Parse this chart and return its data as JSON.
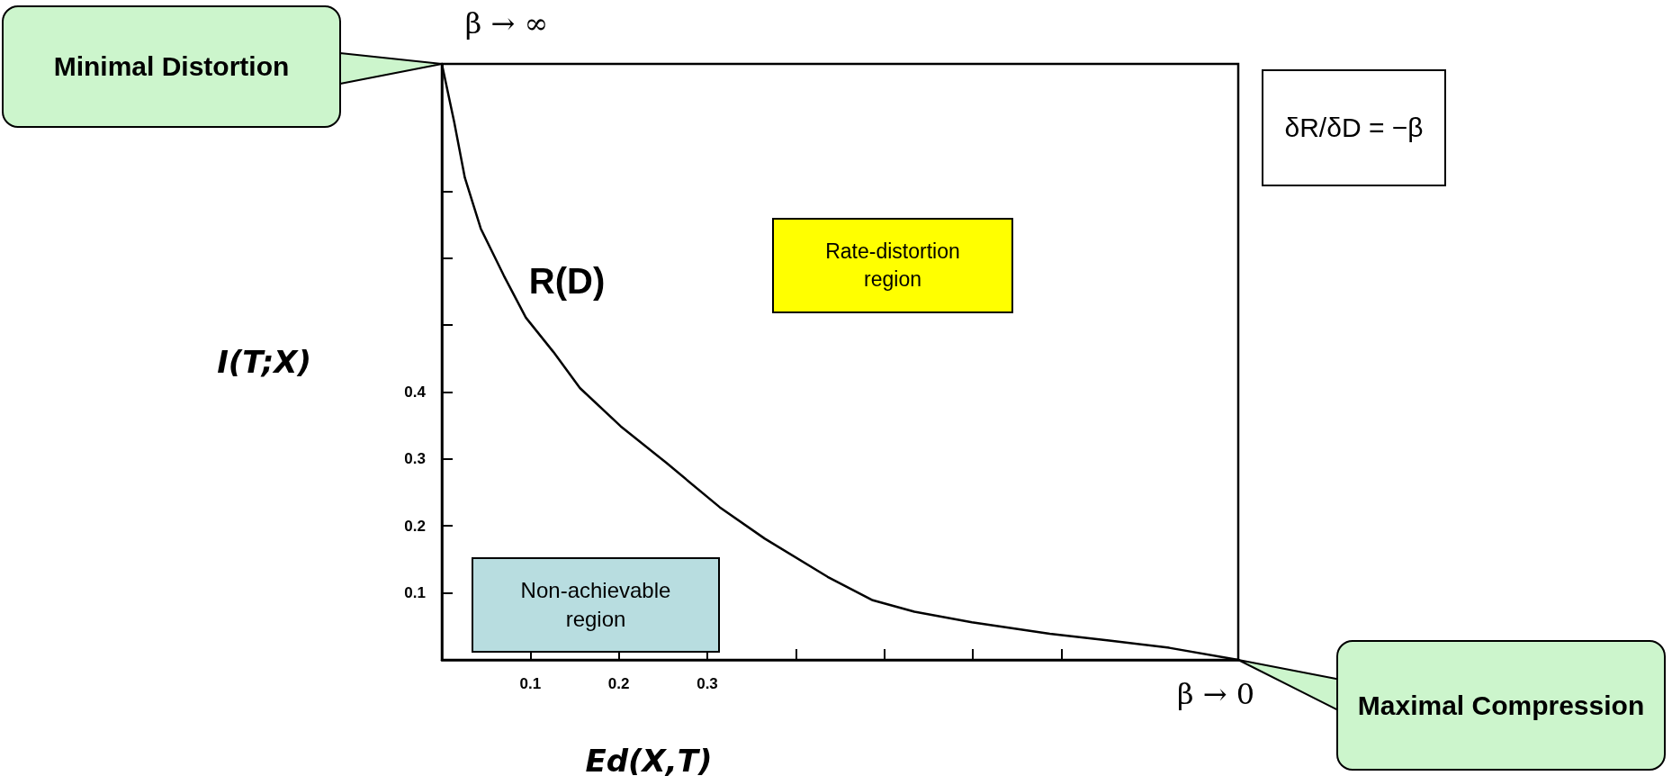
{
  "chart_data": {
    "type": "line",
    "xlabel": "Ed(X,T)",
    "ylabel": "I(T;X)",
    "x": [
      0,
      0.014,
      0.026,
      0.044,
      0.07,
      0.095,
      0.126,
      0.156,
      0.202,
      0.253,
      0.314,
      0.365,
      0.436,
      0.487,
      0.534,
      0.599,
      0.687,
      0.754,
      0.822,
      0.9
    ],
    "series": [
      {
        "color": "#000000",
        "values": [
          0.89,
          0.803,
          0.72,
          0.644,
          0.574,
          0.511,
          0.46,
          0.406,
          0.349,
          0.295,
          0.228,
          0.181,
          0.124,
          0.089,
          0.072,
          0.056,
          0.039,
          0.029,
          0.018,
          0
        ]
      }
    ],
    "xlim": [
      0,
      0.9
    ],
    "ylim": [
      0,
      0.89
    ],
    "xticks": [
      0.1,
      0.2,
      0.3,
      {
        "value": 0.4,
        "label": null
      },
      {
        "value": 0.5,
        "label": null
      },
      {
        "value": 0.6,
        "label": null
      },
      {
        "value": 0.7,
        "label": null
      }
    ],
    "yticks": [
      0.1,
      0.2,
      0.3,
      0.4,
      {
        "value": 0.5,
        "label": null
      },
      {
        "value": 0.6,
        "label": null
      },
      {
        "value": 0.7,
        "label": null
      }
    ],
    "marker": "none",
    "line_style": "solid",
    "annotations": [
      "Minimal Distortion",
      "β → ∞",
      "δR/δD = −β",
      "R(D)",
      "Rate-distortion region",
      "Non-achievable region",
      "β → 0",
      "Maximal Compression"
    ]
  }
}
